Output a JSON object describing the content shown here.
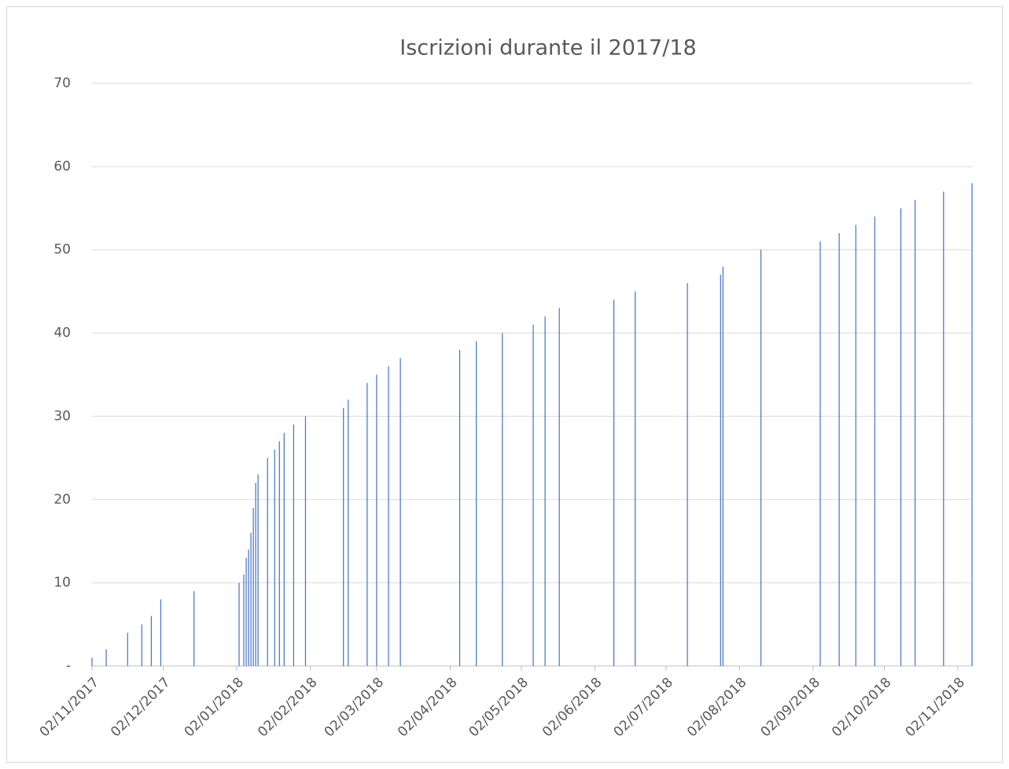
{
  "chart_data": {
    "type": "bar",
    "title": "Iscrizioni durante il 2017/18",
    "x": [
      "02/11/2017",
      "08/11/2017",
      "17/11/2017",
      "23/11/2017",
      "27/11/2017",
      "01/12/2017",
      "15/12/2017",
      "03/01/2018",
      "05/01/2018",
      "06/01/2018",
      "07/01/2018",
      "08/01/2018",
      "09/01/2018",
      "10/01/2018",
      "11/01/2018",
      "15/01/2018",
      "18/01/2018",
      "20/01/2018",
      "22/01/2018",
      "26/01/2018",
      "31/01/2018",
      "16/02/2018",
      "18/02/2018",
      "26/02/2018",
      "02/03/2018",
      "07/03/2018",
      "12/03/2018",
      "06/04/2018",
      "13/04/2018",
      "24/04/2018",
      "07/05/2018",
      "12/05/2018",
      "18/05/2018",
      "10/06/2018",
      "19/06/2018",
      "11/07/2018",
      "25/07/2018",
      "26/07/2018",
      "11/08/2018",
      "05/09/2018",
      "13/09/2018",
      "20/09/2018",
      "28/09/2018",
      "09/10/2018",
      "15/10/2018",
      "27/10/2018",
      "08/11/2018"
    ],
    "values": [
      1,
      2,
      4,
      5,
      6,
      8,
      9,
      10,
      11,
      13,
      14,
      16,
      19,
      22,
      23,
      25,
      26,
      27,
      28,
      29,
      30,
      31,
      32,
      34,
      35,
      36,
      37,
      38,
      39,
      40,
      41,
      42,
      43,
      44,
      45,
      46,
      47,
      48,
      50,
      51,
      52,
      53,
      54,
      55,
      56,
      57,
      58
    ],
    "color": "#4472c4",
    "xlim": [
      "02/11/2017",
      "08/11/2018"
    ],
    "xticks": [
      "02/11/2017",
      "02/12/2017",
      "02/01/2018",
      "02/02/2018",
      "02/03/2018",
      "02/04/2018",
      "02/05/2018",
      "02/06/2018",
      "02/07/2018",
      "02/08/2018",
      "02/09/2018",
      "02/10/2018",
      "02/11/2018"
    ],
    "ylim": [
      0,
      70
    ],
    "yticks": [
      {
        "value": 0,
        "label": "-"
      },
      10,
      20,
      30,
      40,
      50,
      60,
      70
    ],
    "grid": true
  }
}
